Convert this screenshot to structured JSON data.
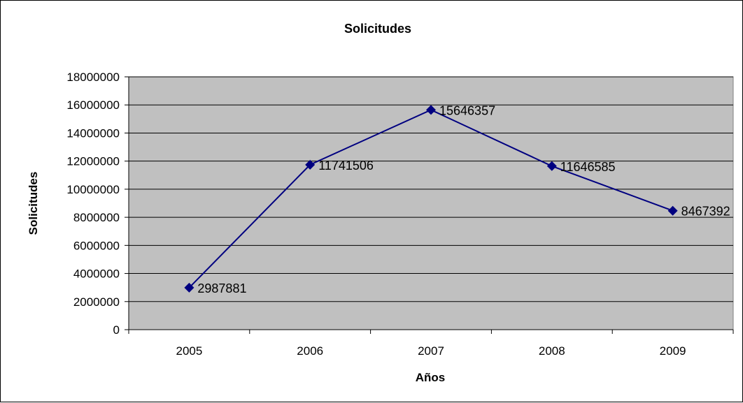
{
  "chart_data": {
    "type": "line",
    "title": "Solicitudes",
    "xlabel": "Años",
    "ylabel": "Solicitudes",
    "categories": [
      "2005",
      "2006",
      "2007",
      "2008",
      "2009"
    ],
    "series": [
      {
        "values": [
          2987881,
          11741506,
          15646357,
          11646585,
          8467392
        ],
        "color": "#000080"
      }
    ],
    "data_labels": [
      "2987881",
      "11741506",
      "15646357",
      "11646585",
      "8467392"
    ],
    "ylim": [
      0,
      18000000
    ],
    "y_ticks": [
      "0",
      "2000000",
      "4000000",
      "6000000",
      "8000000",
      "10000000",
      "12000000",
      "14000000",
      "16000000",
      "18000000"
    ],
    "grid": true,
    "plot_background": "#c0c0c0",
    "legend": "none"
  }
}
